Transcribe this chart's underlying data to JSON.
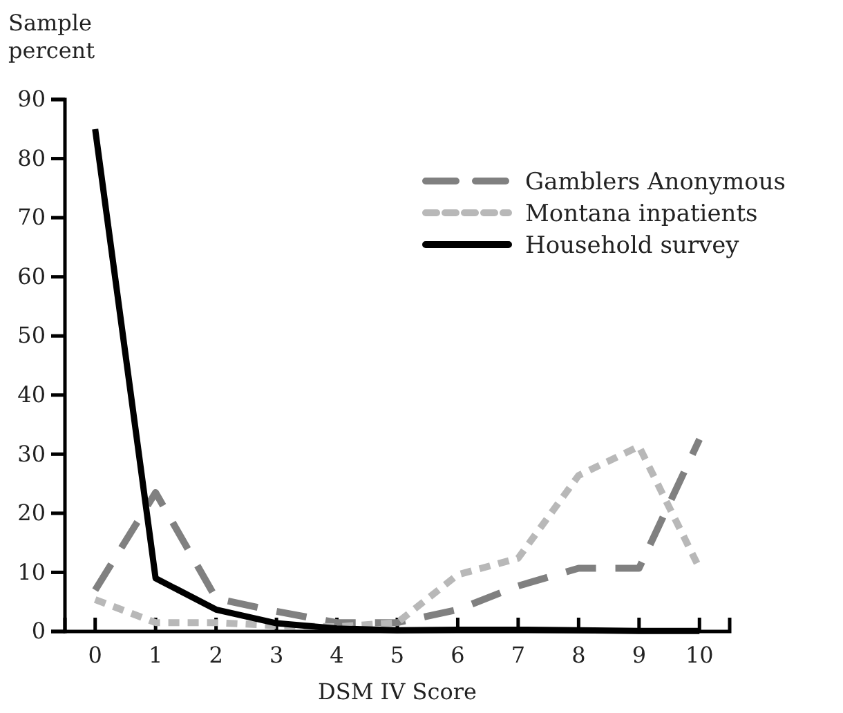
{
  "chart_data": {
    "type": "line",
    "ylabel": "Sample percent",
    "xlabel": "DSM IV Score",
    "x": [
      0,
      1,
      2,
      3,
      4,
      5,
      6,
      7,
      8,
      9,
      10
    ],
    "xlim": [
      -0.5,
      10.5
    ],
    "xticks": [
      0,
      1,
      2,
      3,
      4,
      5,
      6,
      7,
      8,
      9,
      10
    ],
    "ylim": [
      0,
      90
    ],
    "yticks": [
      0,
      10,
      20,
      30,
      40,
      50,
      60,
      70,
      80,
      90
    ],
    "legend": "top right",
    "grid": false,
    "series": [
      {
        "name": "Gamblers Anonymous",
        "color": "#808080",
        "line_style": "dashed",
        "values": [
          7,
          23.5,
          5.6,
          3.4,
          1.5,
          1.5,
          3.7,
          7.7,
          10.7,
          10.7,
          32.5
        ]
      },
      {
        "name": "Montana inpatients",
        "color": "#b8b8b8",
        "line_style": "dotted",
        "values": [
          5.4,
          1.5,
          1.5,
          1,
          0.8,
          1.5,
          9.6,
          12.4,
          26.4,
          31.3,
          10.7
        ]
      },
      {
        "name": "Household survey",
        "color": "#000000",
        "line_style": "solid",
        "values": [
          85,
          9,
          3.7,
          1.4,
          0.5,
          0.2,
          0.3,
          0.3,
          0.2,
          0.1,
          0.1
        ]
      }
    ]
  }
}
